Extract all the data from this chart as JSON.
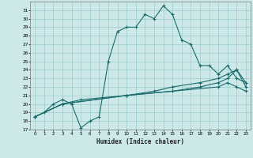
{
  "xlabel": "Humidex (Indice chaleur)",
  "bg_color": "#cce8e8",
  "grid_color": "#99cccc",
  "line_color": "#1a6b6b",
  "xlim": [
    -0.5,
    23.5
  ],
  "ylim": [
    17,
    32
  ],
  "xticks": [
    0,
    1,
    2,
    3,
    4,
    5,
    6,
    7,
    8,
    9,
    10,
    11,
    12,
    13,
    14,
    15,
    16,
    17,
    18,
    19,
    20,
    21,
    22,
    23
  ],
  "yticks": [
    17,
    18,
    19,
    20,
    21,
    22,
    23,
    24,
    25,
    26,
    27,
    28,
    29,
    30,
    31
  ],
  "line1_x": [
    0,
    1,
    2,
    3,
    4,
    5,
    6,
    7,
    8,
    9,
    10,
    11,
    12,
    13,
    14,
    15,
    16,
    17,
    18,
    19,
    20,
    21,
    22,
    23
  ],
  "line1_y": [
    18.5,
    19.0,
    20.0,
    20.5,
    20.0,
    17.2,
    18.0,
    18.5,
    25.0,
    28.5,
    29.0,
    29.0,
    30.5,
    30.0,
    31.5,
    30.5,
    27.5,
    27.0,
    24.5,
    24.5,
    23.5,
    24.5,
    23.0,
    22.5
  ],
  "line2_x": [
    0,
    3,
    5,
    10,
    13,
    15,
    18,
    20,
    21,
    22,
    23
  ],
  "line2_y": [
    18.5,
    20.0,
    20.5,
    21.0,
    21.5,
    22.0,
    22.5,
    23.0,
    23.5,
    24.0,
    22.5
  ],
  "line3_x": [
    0,
    3,
    10,
    15,
    18,
    20,
    21,
    22,
    23
  ],
  "line3_y": [
    18.5,
    20.0,
    21.0,
    21.5,
    22.0,
    22.5,
    23.0,
    24.0,
    22.0
  ],
  "line4_x": [
    0,
    3,
    10,
    15,
    20,
    21,
    22,
    23
  ],
  "line4_y": [
    18.5,
    20.0,
    21.0,
    21.5,
    22.0,
    22.5,
    22.0,
    21.5
  ]
}
